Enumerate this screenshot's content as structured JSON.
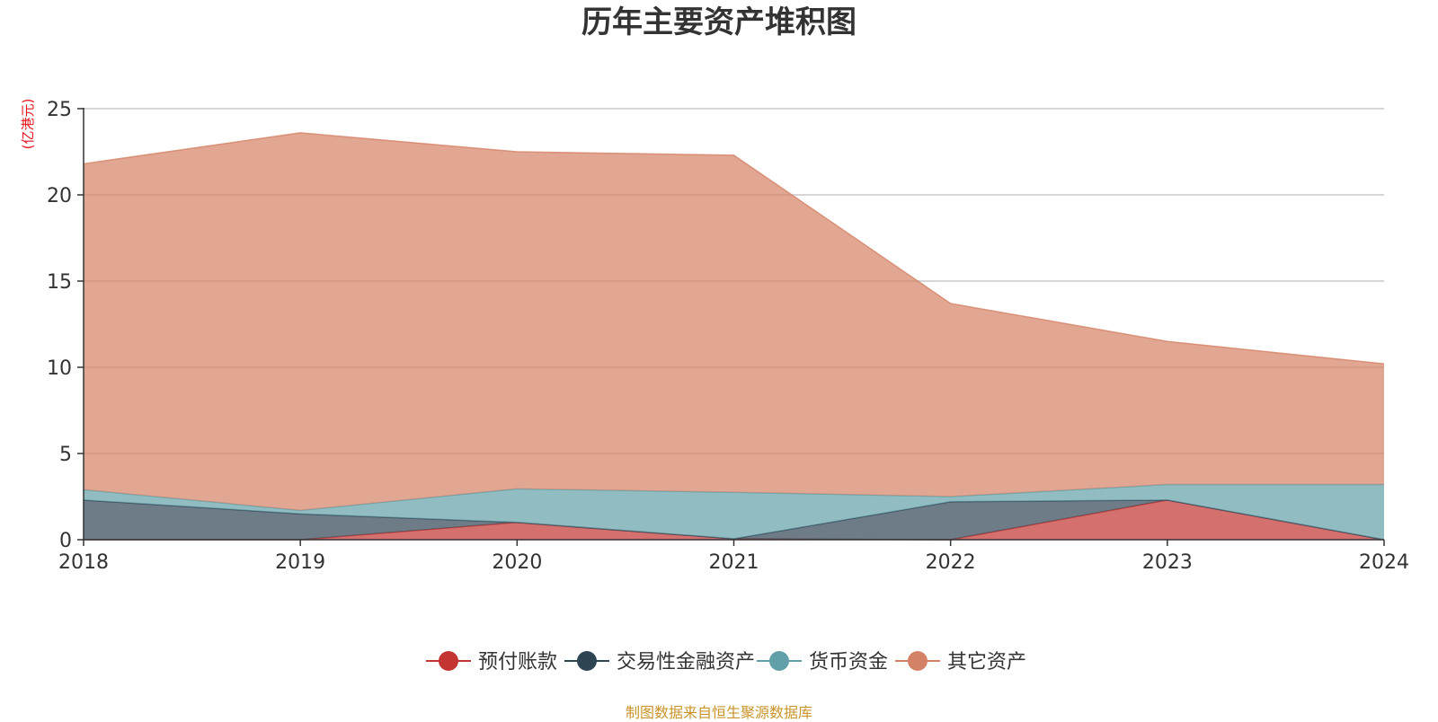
{
  "chart_data": {
    "type": "area",
    "stacked": true,
    "title": "历年主要资产堆积图",
    "unit_label": "(亿港元)",
    "x": [
      "2018",
      "2019",
      "2020",
      "2021",
      "2022",
      "2023",
      "2024"
    ],
    "ylim": [
      0,
      25
    ],
    "yticks": [
      0,
      5,
      10,
      15,
      20,
      25
    ],
    "grid": true,
    "legend_position": "bottom-center",
    "series": [
      {
        "name": "预付账款",
        "color": "#c23531",
        "values": [
          0,
          0,
          1.0,
          0.05,
          0,
          2.3,
          0
        ]
      },
      {
        "name": "交易性金融资产",
        "color": "#2f4554",
        "values": [
          2.3,
          1.5,
          0,
          0,
          2.2,
          0,
          0
        ]
      },
      {
        "name": "货币资金",
        "color": "#61a0a8",
        "values": [
          0.6,
          0.2,
          1.95,
          2.7,
          0.3,
          0.9,
          3.2
        ]
      },
      {
        "name": "其它资产",
        "color": "#d48265",
        "values": [
          18.9,
          21.9,
          19.55,
          19.55,
          11.2,
          8.3,
          7.0
        ]
      }
    ]
  },
  "footer": {
    "source": "制图数据来自恒生聚源数据库"
  }
}
